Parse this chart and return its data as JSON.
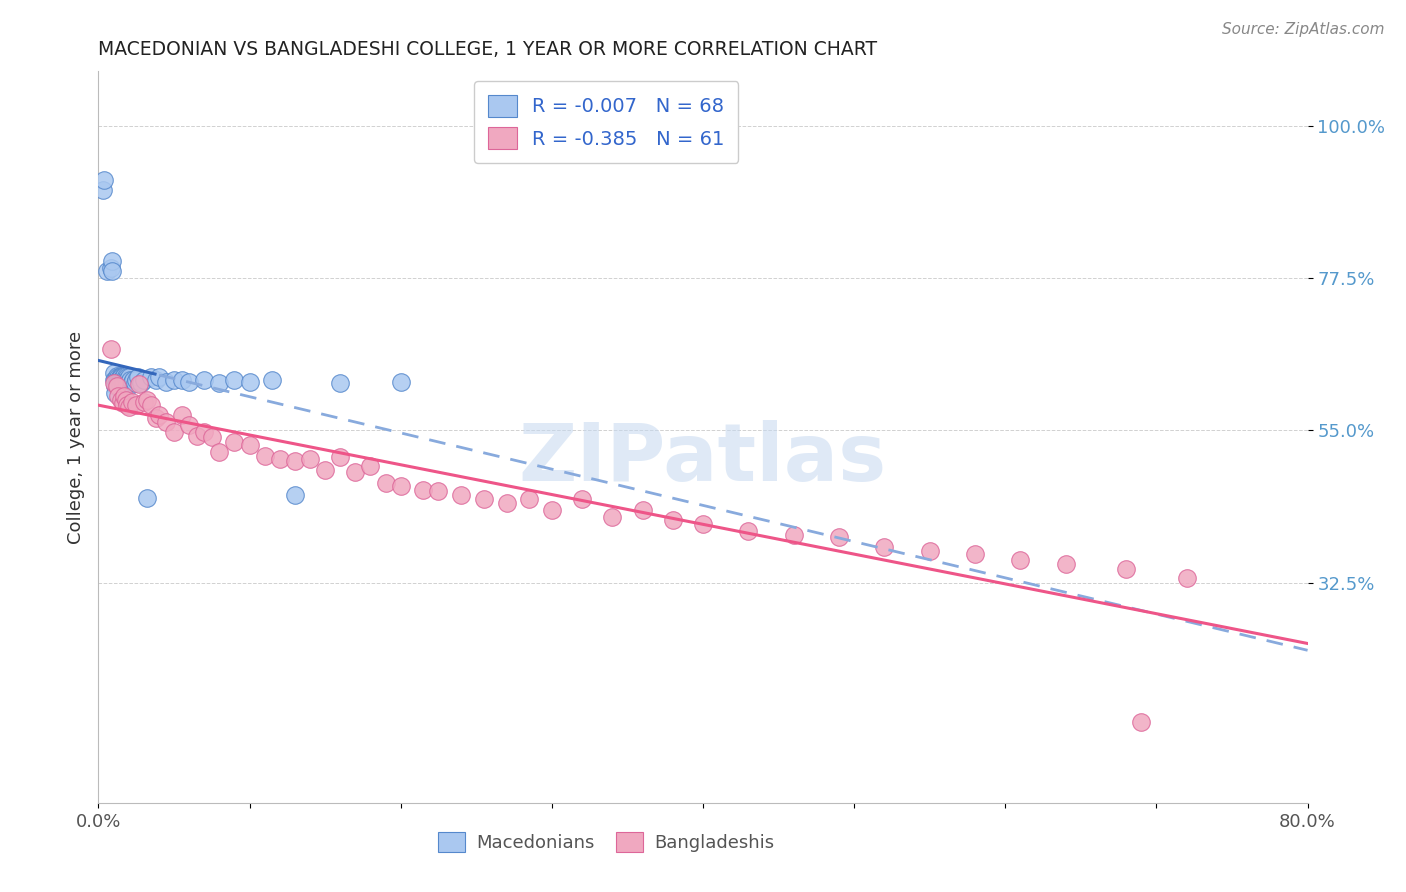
{
  "title": "MACEDONIAN VS BANGLADESHI COLLEGE, 1 YEAR OR MORE CORRELATION CHART",
  "source": "Source: ZipAtlas.com",
  "ylabel": "College, 1 year or more",
  "xlim": [
    0.0,
    0.8
  ],
  "ylim": [
    0.0,
    1.08
  ],
  "ytick_vals": [
    0.325,
    0.55,
    0.775,
    1.0
  ],
  "ytick_labels": [
    "32.5%",
    "55.0%",
    "77.5%",
    "100.0%"
  ],
  "xtick_vals": [
    0.0,
    0.1,
    0.2,
    0.3,
    0.4,
    0.5,
    0.6,
    0.7,
    0.8
  ],
  "xtick_labels": [
    "0.0%",
    "",
    "",
    "",
    "",
    "",
    "",
    "",
    "80.0%"
  ],
  "mac_color": "#aac8f0",
  "bang_color": "#f0a8c0",
  "mac_edge_color": "#5588cc",
  "bang_edge_color": "#dd6699",
  "trend_mac_solid_color": "#3366bb",
  "trend_mac_dash_color": "#88aadd",
  "trend_bang_color": "#ee5588",
  "legend_mac_label": "R = -0.007   N = 68",
  "legend_bang_label": "R = -0.385   N = 61",
  "legend_text_color": "#3366cc",
  "watermark": "ZIPatlas",
  "mac_trend_intercept": 0.622,
  "mac_trend_slope": -0.002,
  "bang_trend_intercept": 0.615,
  "bang_trend_slope": -0.385,
  "mac_x": [
    0.003,
    0.004,
    0.006,
    0.008,
    0.009,
    0.009,
    0.01,
    0.01,
    0.011,
    0.011,
    0.011,
    0.012,
    0.012,
    0.012,
    0.013,
    0.013,
    0.013,
    0.013,
    0.013,
    0.014,
    0.014,
    0.014,
    0.014,
    0.015,
    0.015,
    0.015,
    0.015,
    0.015,
    0.016,
    0.016,
    0.016,
    0.016,
    0.017,
    0.017,
    0.017,
    0.018,
    0.018,
    0.018,
    0.019,
    0.019,
    0.019,
    0.02,
    0.02,
    0.02,
    0.021,
    0.022,
    0.023,
    0.024,
    0.025,
    0.026,
    0.028,
    0.03,
    0.032,
    0.035,
    0.038,
    0.04,
    0.045,
    0.05,
    0.055,
    0.06,
    0.07,
    0.08,
    0.09,
    0.1,
    0.115,
    0.13,
    0.16,
    0.2
  ],
  "mac_y": [
    0.905,
    0.92,
    0.785,
    0.79,
    0.8,
    0.785,
    0.635,
    0.625,
    0.625,
    0.615,
    0.605,
    0.63,
    0.625,
    0.62,
    0.628,
    0.625,
    0.622,
    0.62,
    0.615,
    0.628,
    0.625,
    0.622,
    0.615,
    0.63,
    0.628,
    0.625,
    0.622,
    0.615,
    0.628,
    0.625,
    0.622,
    0.615,
    0.63,
    0.625,
    0.62,
    0.63,
    0.625,
    0.615,
    0.628,
    0.625,
    0.618,
    0.628,
    0.622,
    0.615,
    0.625,
    0.622,
    0.625,
    0.62,
    0.625,
    0.628,
    0.62,
    0.625,
    0.45,
    0.628,
    0.625,
    0.628,
    0.622,
    0.625,
    0.625,
    0.622,
    0.625,
    0.62,
    0.625,
    0.622,
    0.625,
    0.455,
    0.62,
    0.622
  ],
  "bang_x": [
    0.008,
    0.01,
    0.012,
    0.013,
    0.015,
    0.016,
    0.017,
    0.018,
    0.019,
    0.02,
    0.022,
    0.025,
    0.027,
    0.03,
    0.032,
    0.035,
    0.038,
    0.04,
    0.045,
    0.05,
    0.055,
    0.06,
    0.065,
    0.07,
    0.075,
    0.08,
    0.09,
    0.1,
    0.11,
    0.12,
    0.13,
    0.14,
    0.15,
    0.16,
    0.17,
    0.18,
    0.19,
    0.2,
    0.215,
    0.225,
    0.24,
    0.255,
    0.27,
    0.285,
    0.3,
    0.32,
    0.34,
    0.36,
    0.38,
    0.4,
    0.43,
    0.46,
    0.49,
    0.52,
    0.55,
    0.58,
    0.61,
    0.64,
    0.68,
    0.72,
    0.69
  ],
  "bang_y": [
    0.67,
    0.62,
    0.615,
    0.6,
    0.595,
    0.59,
    0.6,
    0.595,
    0.588,
    0.585,
    0.592,
    0.588,
    0.618,
    0.592,
    0.595,
    0.588,
    0.568,
    0.572,
    0.562,
    0.548,
    0.572,
    0.558,
    0.542,
    0.548,
    0.54,
    0.518,
    0.532,
    0.528,
    0.512,
    0.508,
    0.505,
    0.508,
    0.492,
    0.51,
    0.488,
    0.498,
    0.472,
    0.468,
    0.462,
    0.46,
    0.455,
    0.448,
    0.442,
    0.448,
    0.432,
    0.448,
    0.422,
    0.432,
    0.418,
    0.412,
    0.402,
    0.395,
    0.392,
    0.378,
    0.372,
    0.368,
    0.358,
    0.352,
    0.345,
    0.332,
    0.12
  ]
}
